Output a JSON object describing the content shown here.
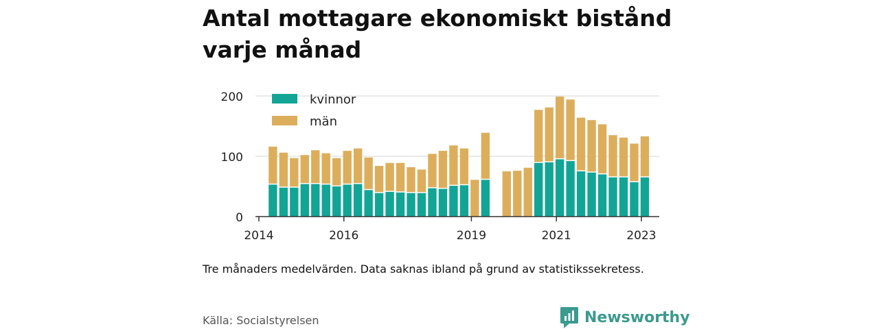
{
  "title": "Antal mottagare ekonomiskt bistånd varje månad",
  "note": "Tre månaders medelvärden. Data saknas ibland på grund av statistikssekretess.",
  "source": "Källa: Socialstyrelsen",
  "brand": {
    "name": "Newsworthy",
    "icon": "newsworthy-logo-icon",
    "color": "#3c9a8e"
  },
  "chart_data": {
    "type": "bar",
    "stacked": true,
    "ylim": [
      0,
      200
    ],
    "yticks": [
      "0",
      "100",
      "200"
    ],
    "xticks": [
      {
        "label": "2014",
        "x": 2014.0
      },
      {
        "label": "2016",
        "x": 2016.0
      },
      {
        "label": "2019",
        "x": 2019.0
      },
      {
        "label": "2021",
        "x": 2021.0
      },
      {
        "label": "2023",
        "x": 2023.0
      }
    ],
    "grid": true,
    "legend_position": "top-left",
    "series": [
      {
        "name": "kvinnor",
        "color": "#12a596"
      },
      {
        "name": "män",
        "color": "#dcae5c"
      }
    ],
    "bars": [
      {
        "x": 2014.33,
        "kvinnor": 53,
        "man": 63
      },
      {
        "x": 2014.58,
        "kvinnor": 48,
        "man": 58
      },
      {
        "x": 2014.83,
        "kvinnor": 48,
        "man": 49
      },
      {
        "x": 2015.08,
        "kvinnor": 54,
        "man": 48
      },
      {
        "x": 2015.33,
        "kvinnor": 54,
        "man": 56
      },
      {
        "x": 2015.58,
        "kvinnor": 53,
        "man": 52
      },
      {
        "x": 2015.83,
        "kvinnor": 50,
        "man": 47
      },
      {
        "x": 2016.08,
        "kvinnor": 53,
        "man": 56
      },
      {
        "x": 2016.33,
        "kvinnor": 54,
        "man": 59
      },
      {
        "x": 2016.58,
        "kvinnor": 44,
        "man": 54
      },
      {
        "x": 2016.83,
        "kvinnor": 39,
        "man": 45
      },
      {
        "x": 2017.08,
        "kvinnor": 41,
        "man": 48
      },
      {
        "x": 2017.33,
        "kvinnor": 40,
        "man": 49
      },
      {
        "x": 2017.58,
        "kvinnor": 39,
        "man": 43
      },
      {
        "x": 2017.83,
        "kvinnor": 39,
        "man": 39
      },
      {
        "x": 2018.08,
        "kvinnor": 47,
        "man": 57
      },
      {
        "x": 2018.33,
        "kvinnor": 46,
        "man": 63
      },
      {
        "x": 2018.58,
        "kvinnor": 51,
        "man": 67
      },
      {
        "x": 2018.83,
        "kvinnor": 52,
        "man": 61
      },
      {
        "x": 2019.08,
        "kvinnor": 0,
        "man": 61
      },
      {
        "x": 2019.33,
        "kvinnor": 61,
        "man": 78
      },
      {
        "x": 2019.83,
        "kvinnor": 0,
        "man": 75
      },
      {
        "x": 2020.08,
        "kvinnor": 0,
        "man": 76
      },
      {
        "x": 2020.33,
        "kvinnor": 0,
        "man": 81
      },
      {
        "x": 2020.58,
        "kvinnor": 89,
        "man": 88
      },
      {
        "x": 2020.83,
        "kvinnor": 90,
        "man": 91
      },
      {
        "x": 2021.08,
        "kvinnor": 95,
        "man": 104
      },
      {
        "x": 2021.33,
        "kvinnor": 92,
        "man": 102
      },
      {
        "x": 2021.58,
        "kvinnor": 75,
        "man": 89
      },
      {
        "x": 2021.83,
        "kvinnor": 73,
        "man": 87
      },
      {
        "x": 2022.08,
        "kvinnor": 70,
        "man": 83
      },
      {
        "x": 2022.33,
        "kvinnor": 65,
        "man": 70
      },
      {
        "x": 2022.58,
        "kvinnor": 65,
        "man": 66
      },
      {
        "x": 2022.83,
        "kvinnor": 57,
        "man": 64
      },
      {
        "x": 2023.08,
        "kvinnor": 65,
        "man": 68
      }
    ]
  }
}
